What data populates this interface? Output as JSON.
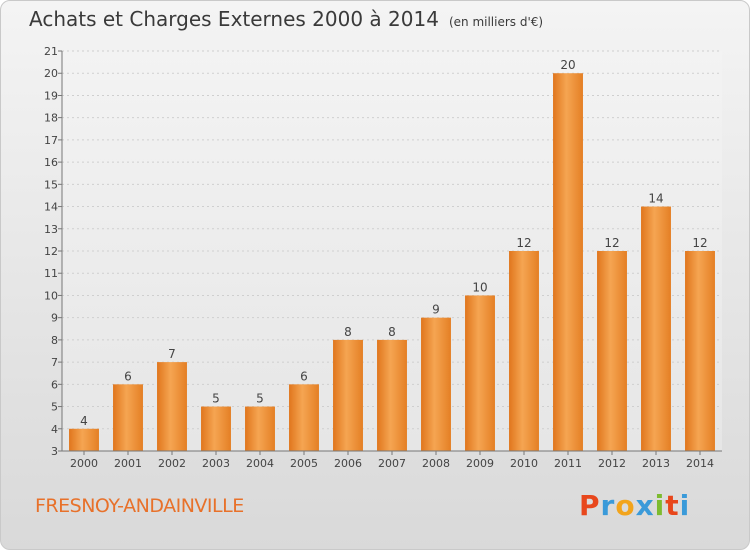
{
  "header": {
    "title": "Achats et Charges Externes 2000 à 2014",
    "unit": "(en milliers d'€)"
  },
  "footer": {
    "city": "FRESNOY-ANDAINVILLE",
    "logo_letters": [
      "P",
      "r",
      "o",
      "x",
      "i",
      "t",
      "i"
    ],
    "logo_colors": [
      "#e8471c",
      "#3a9ad9",
      "#f2a41c",
      "#3a9ad9",
      "#7dbb2f",
      "#e8471c",
      "#3a9ad9"
    ]
  },
  "chart_data": {
    "type": "bar",
    "categories": [
      "2000",
      "2001",
      "2002",
      "2003",
      "2004",
      "2005",
      "2006",
      "2007",
      "2008",
      "2009",
      "2010",
      "2011",
      "2012",
      "2013",
      "2014"
    ],
    "values": [
      4,
      6,
      7,
      5,
      5,
      6,
      8,
      8,
      9,
      10,
      12,
      20,
      12,
      14,
      12
    ],
    "ylim": [
      3,
      21
    ],
    "yticks": [
      3,
      4,
      5,
      6,
      7,
      8,
      9,
      10,
      11,
      12,
      13,
      14,
      15,
      16,
      17,
      18,
      19,
      20,
      21
    ],
    "grid": true,
    "bar_color": "#f0922f"
  }
}
